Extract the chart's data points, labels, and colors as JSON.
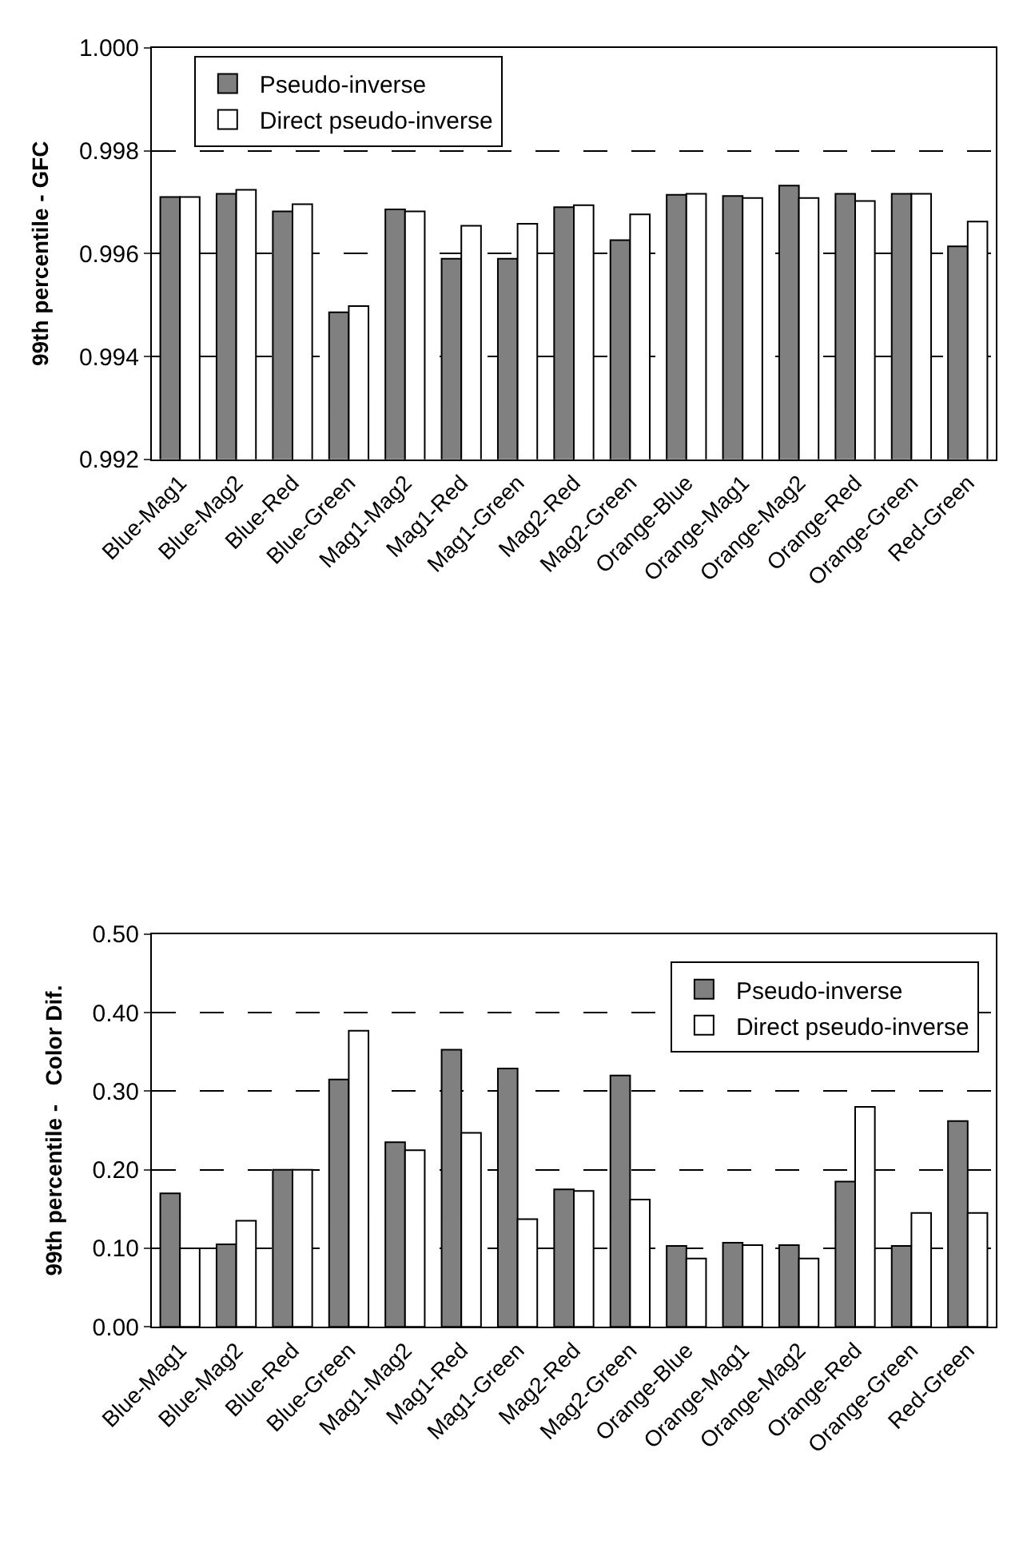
{
  "chart_data": [
    {
      "type": "bar",
      "ylabel": "99th percentile - GFC",
      "categories": [
        "Blue-Mag1",
        "Blue-Mag2",
        "Blue-Red",
        "Blue-Green",
        "Mag1-Mag2",
        "Mag1-Red",
        "Mag1-Green",
        "Mag2-Red",
        "Mag2-Green",
        "Orange-Blue",
        "Orange-Mag1",
        "Orange-Mag2",
        "Orange-Red",
        "Orange-Green",
        "Red-Green"
      ],
      "series": [
        {
          "name": "Pseudo-inverse",
          "color": "#808080",
          "values": [
            0.9971,
            0.99716,
            0.99682,
            0.99486,
            0.99686,
            0.9959,
            0.9959,
            0.9969,
            0.99626,
            0.99714,
            0.99712,
            0.99732,
            0.99716,
            0.99716,
            0.99614
          ]
        },
        {
          "name": "Direct pseudo-inverse",
          "color": "#ffffff",
          "values": [
            0.9971,
            0.99724,
            0.99696,
            0.99498,
            0.99682,
            0.99654,
            0.99658,
            0.99694,
            0.99676,
            0.99716,
            0.99708,
            0.99708,
            0.99702,
            0.99716,
            0.99662
          ]
        }
      ],
      "ylim": [
        0.992,
        1.0
      ],
      "yticks": [
        {
          "value": 0.992,
          "label": "0.992"
        },
        {
          "value": 0.994,
          "label": "0.994"
        },
        {
          "value": 0.996,
          "label": "0.996"
        },
        {
          "value": 0.998,
          "label": "0.998"
        },
        {
          "value": 1.0,
          "label": "1.000"
        }
      ],
      "grid": "y",
      "legend": "top left"
    },
    {
      "type": "bar",
      "ylabel": "99th percentile -   Color Dif.",
      "categories": [
        "Blue-Mag1",
        "Blue-Mag2",
        "Blue-Red",
        "Blue-Green",
        "Mag1-Mag2",
        "Mag1-Red",
        "Mag1-Green",
        "Mag2-Red",
        "Mag2-Green",
        "Orange-Blue",
        "Orange-Mag1",
        "Orange-Mag2",
        "Orange-Red",
        "Orange-Green",
        "Red-Green"
      ],
      "series": [
        {
          "name": "Pseudo-inverse",
          "color": "#808080",
          "values": [
            0.17,
            0.105,
            0.2,
            0.315,
            0.235,
            0.353,
            0.329,
            0.175,
            0.32,
            0.103,
            0.107,
            0.104,
            0.185,
            0.103,
            0.262
          ]
        },
        {
          "name": "Direct pseudo-inverse",
          "color": "#ffffff",
          "values": [
            0.1,
            0.135,
            0.2,
            0.377,
            0.225,
            0.247,
            0.137,
            0.173,
            0.162,
            0.087,
            0.104,
            0.087,
            0.28,
            0.145,
            0.145
          ]
        }
      ],
      "ylim": [
        0.0,
        0.5
      ],
      "yticks": [
        {
          "value": 0,
          "label": "0.00"
        },
        {
          "value": 0.1,
          "label": "0.10"
        },
        {
          "value": 0.2,
          "label": "0.20"
        },
        {
          "value": 0.3,
          "label": "0.30"
        },
        {
          "value": 0.4,
          "label": "0.40"
        },
        {
          "value": 0.5,
          "label": "0.50"
        }
      ],
      "grid": "y",
      "legend": "top right"
    }
  ]
}
